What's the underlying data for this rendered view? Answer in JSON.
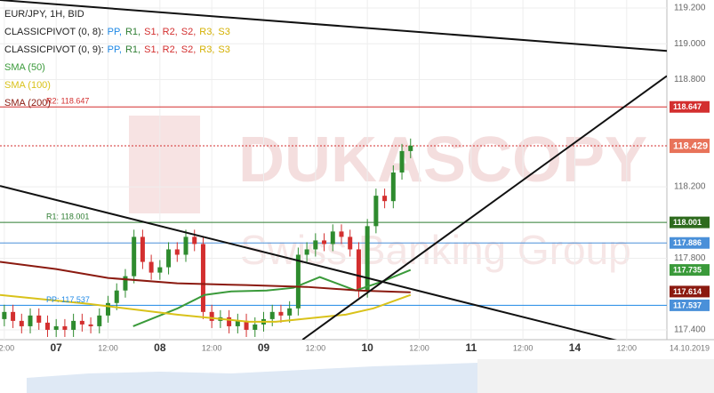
{
  "chart_data": {
    "type": "candlestick",
    "header": "EUR/JPY, 1H, BID",
    "pivot_legends": [
      {
        "prefix": "CLASSICPIVOT (0, 8):",
        "items": [
          {
            "text": "PP,",
            "color": "#1e88e5"
          },
          {
            "text": "R1,",
            "color": "#2e7d32"
          },
          {
            "text": "S1,",
            "color": "#d32f2f"
          },
          {
            "text": "R2,",
            "color": "#d32f2f"
          },
          {
            "text": "S2,",
            "color": "#d32f2f"
          },
          {
            "text": "R3,",
            "color": "#d4b000"
          },
          {
            "text": "S3",
            "color": "#d4b000"
          }
        ]
      },
      {
        "prefix": "CLASSICPIVOT (0, 9):",
        "items": [
          {
            "text": "PP,",
            "color": "#1e88e5"
          },
          {
            "text": "R1,",
            "color": "#2e7d32"
          },
          {
            "text": "S1,",
            "color": "#d32f2f"
          },
          {
            "text": "R2,",
            "color": "#d32f2f"
          },
          {
            "text": "S2,",
            "color": "#d32f2f"
          },
          {
            "text": "R3,",
            "color": "#d4b000"
          },
          {
            "text": "S3",
            "color": "#d4b000"
          }
        ]
      }
    ],
    "watermark": [
      "DUKASCOPY",
      "Swiss Banking Group"
    ],
    "up_color": "#2e8b2e",
    "down_color": "#d32f2f",
    "x": [
      0,
      2,
      4,
      6,
      8,
      10,
      12,
      14,
      16,
      18,
      20,
      22,
      24,
      26,
      28,
      30,
      32,
      34,
      36,
      38,
      40,
      42,
      44,
      46,
      48,
      50,
      52,
      54,
      56,
      58,
      60,
      62,
      64,
      66,
      68,
      70,
      72,
      74,
      76,
      78,
      80,
      82,
      84,
      86,
      88,
      90,
      92,
      94
    ],
    "open": [
      117.46,
      117.5,
      117.45,
      117.42,
      117.48,
      117.44,
      117.4,
      117.42,
      117.4,
      117.45,
      117.43,
      117.42,
      117.48,
      117.55,
      117.62,
      117.7,
      117.92,
      117.78,
      117.72,
      117.75,
      117.85,
      117.82,
      117.92,
      117.88,
      117.5,
      117.45,
      117.47,
      117.42,
      117.45,
      117.4,
      117.43,
      117.46,
      117.5,
      117.48,
      117.52,
      117.82,
      117.85,
      117.9,
      117.88,
      117.95,
      117.92,
      117.85,
      117.62,
      117.98,
      118.15,
      118.12,
      118.28,
      118.4
    ],
    "high": [
      117.54,
      117.54,
      117.49,
      117.52,
      117.52,
      117.48,
      117.46,
      117.46,
      117.49,
      117.49,
      117.47,
      117.52,
      117.59,
      117.66,
      117.74,
      117.96,
      117.96,
      117.82,
      117.79,
      117.89,
      117.89,
      117.96,
      117.96,
      117.92,
      117.54,
      117.51,
      117.51,
      117.49,
      117.49,
      117.47,
      117.5,
      117.54,
      117.54,
      117.56,
      117.86,
      117.89,
      117.94,
      117.94,
      117.99,
      117.99,
      117.96,
      117.89,
      118.02,
      118.19,
      118.19,
      118.32,
      118.44,
      118.47
    ],
    "low": [
      117.42,
      117.41,
      117.38,
      117.38,
      117.4,
      117.36,
      117.36,
      117.36,
      117.36,
      117.39,
      117.38,
      117.38,
      117.44,
      117.51,
      117.58,
      117.66,
      117.74,
      117.68,
      117.68,
      117.71,
      117.78,
      117.78,
      117.84,
      117.46,
      117.41,
      117.41,
      117.38,
      117.38,
      117.36,
      117.36,
      117.39,
      117.42,
      117.44,
      117.44,
      117.48,
      117.78,
      117.81,
      117.84,
      117.84,
      117.88,
      117.81,
      117.58,
      117.58,
      117.94,
      118.08,
      118.08,
      118.24,
      118.36
    ],
    "close": [
      117.5,
      117.45,
      117.42,
      117.48,
      117.44,
      117.4,
      117.42,
      117.4,
      117.45,
      117.43,
      117.42,
      117.48,
      117.55,
      117.62,
      117.7,
      117.92,
      117.78,
      117.72,
      117.75,
      117.85,
      117.82,
      117.92,
      117.88,
      117.5,
      117.45,
      117.47,
      117.42,
      117.45,
      117.4,
      117.43,
      117.46,
      117.5,
      117.48,
      117.52,
      117.82,
      117.85,
      117.9,
      117.88,
      117.95,
      117.92,
      117.85,
      117.62,
      117.98,
      118.15,
      118.12,
      118.28,
      118.4,
      118.43
    ],
    "series": [
      {
        "name": "SMA (50)",
        "color": "#3a9a3a",
        "x": [
          29.8,
          40.1,
          46.3,
          52.5,
          60.7,
          66.9,
          73,
          81.3,
          87.4,
          94
        ],
        "values": [
          117.42,
          117.52,
          117.595,
          117.615,
          117.62,
          117.635,
          117.695,
          117.62,
          117.67,
          117.735
        ]
      },
      {
        "name": "SMA (100)",
        "color": "#d9c21a",
        "x": [
          -1,
          19.5,
          40,
          56.6,
          62.8,
          79,
          85.4,
          94
        ],
        "values": [
          117.595,
          117.545,
          117.485,
          117.445,
          117.445,
          117.485,
          117.52,
          117.595
        ]
      },
      {
        "name": "SMA (200)",
        "color": "#8b1a10",
        "x": [
          -1,
          12,
          24,
          40,
          56,
          70,
          82,
          94
        ],
        "values": [
          117.78,
          117.74,
          117.69,
          117.66,
          117.65,
          117.64,
          117.62,
          117.61
        ]
      }
    ],
    "trend_lines": [
      {
        "color": "#111111",
        "x": [
          -1,
          153.3
        ],
        "values": [
          119.245,
          118.96
        ]
      },
      {
        "color": "#111111",
        "x": [
          -1,
          153.3
        ],
        "values": [
          118.205,
          117.27
        ]
      },
      {
        "color": "#111111",
        "x": [
          69,
          153.3
        ],
        "values": [
          117.345,
          118.82
        ]
      }
    ],
    "levels": [
      {
        "value": 118.647,
        "color": "#d32f2f",
        "label": "R2: 118.647"
      },
      {
        "value": 118.001,
        "color": "#2e7d32",
        "label": "R1: 118.001"
      },
      {
        "value": 117.537,
        "color": "#1e88e5",
        "label": "PP: 117.537"
      },
      {
        "value": 117.886,
        "color": "#4a90d9"
      },
      {
        "value": 118.429,
        "color": "#d32f2f",
        "dashed": true
      }
    ],
    "price_tags": [
      {
        "value": 118.647,
        "color": "#d32f2f"
      },
      {
        "value": 118.429,
        "color": "#e8735a"
      },
      {
        "value": 118.001,
        "color": "#2e6b1e"
      },
      {
        "value": 117.886,
        "color": "#4a90d9"
      },
      {
        "value": 117.735,
        "color": "#3a9a3a"
      },
      {
        "value": 117.614,
        "color": "#8b1a10"
      },
      {
        "value": 117.537,
        "color": "#4a90d9"
      }
    ],
    "xlim": [
      -1,
      153.3
    ],
    "ylim": [
      117.345,
      119.245
    ],
    "yticks": [
      {
        "value": 119.2,
        "label": "119.200"
      },
      {
        "value": 119.0,
        "label": "119.000"
      },
      {
        "value": 118.8,
        "label": "118.800"
      },
      {
        "value": 118.2,
        "label": "118.200"
      },
      {
        "value": 117.8,
        "label": "117.800"
      },
      {
        "value": 117.4,
        "label": "117.400"
      }
    ],
    "xticks": [
      {
        "value": 0,
        "label": "12:00"
      },
      {
        "value": 12,
        "label": "07"
      },
      {
        "value": 24,
        "label": "12:00"
      },
      {
        "value": 36,
        "label": "08"
      },
      {
        "value": 48,
        "label": "12:00"
      },
      {
        "value": 60,
        "label": "09"
      },
      {
        "value": 72,
        "label": "12:00"
      },
      {
        "value": 84,
        "label": "10"
      },
      {
        "value": 96,
        "label": "12:00"
      },
      {
        "value": 108,
        "label": "11"
      },
      {
        "value": 120,
        "label": "12:00"
      },
      {
        "value": 132,
        "label": "14"
      },
      {
        "value": 144,
        "label": "12:00"
      }
    ],
    "date_label": "14.10.2019",
    "grid": true
  }
}
